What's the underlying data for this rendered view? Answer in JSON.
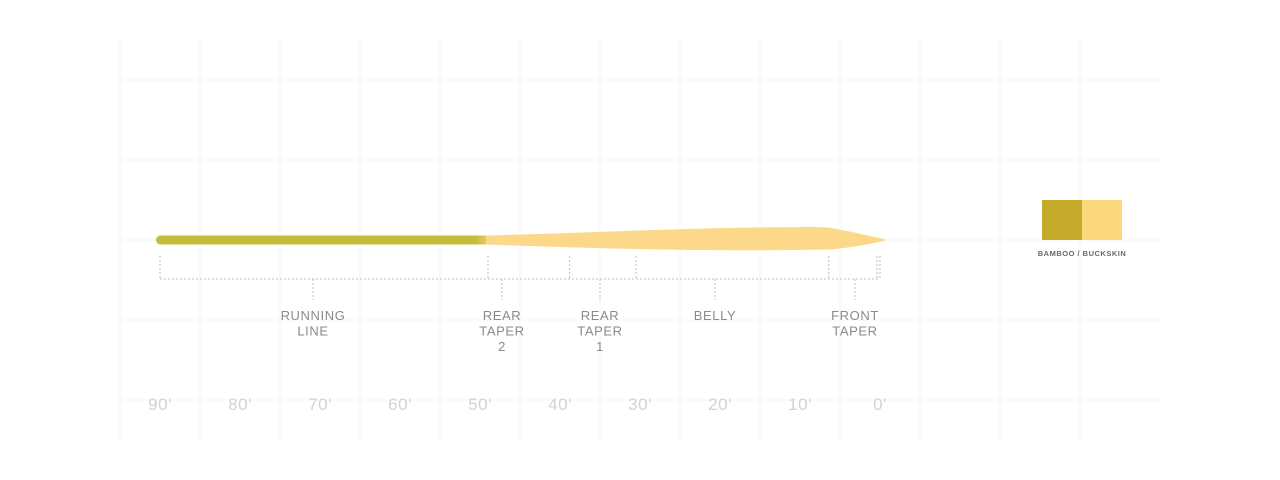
{
  "colors": {
    "running_line": "#c6bc3a",
    "head": "#fcd98a",
    "swatches": [
      "#c4ab2c",
      "#fbd87b"
    ]
  },
  "segments": [
    {
      "id": "running-line",
      "lines": [
        "RUNNING",
        "LINE"
      ],
      "start_ft": 90,
      "end_ft": 49
    },
    {
      "id": "rear-taper-2",
      "lines": [
        "REAR",
        "TAPER",
        "2"
      ],
      "start_ft": 49,
      "end_ft": 38.8
    },
    {
      "id": "rear-taper-1",
      "lines": [
        "REAR",
        "TAPER",
        "1"
      ],
      "start_ft": 38.8,
      "end_ft": 30.5
    },
    {
      "id": "belly",
      "lines": [
        "BELLY"
      ],
      "start_ft": 30.5,
      "end_ft": 6.4
    },
    {
      "id": "front-taper",
      "lines": [
        "FRONT",
        "TAPER"
      ],
      "start_ft": 6.4,
      "end_ft": 0
    }
  ],
  "distance_labels": [
    "90'",
    "80'",
    "70'",
    "60'",
    "50'",
    "40'",
    "30'",
    "20'",
    "10'",
    "0'"
  ],
  "distance_values": [
    90,
    80,
    70,
    60,
    50,
    40,
    30,
    20,
    10,
    0
  ],
  "color_legend": {
    "label": "BAMBOO / BUCKSKIN"
  }
}
